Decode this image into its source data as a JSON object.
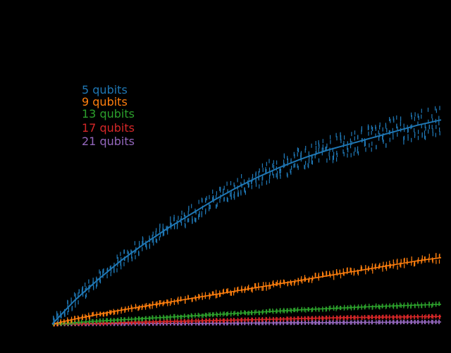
{
  "chart_data": {
    "type": "scatter",
    "title": "",
    "xlabel": "",
    "ylabel": "",
    "grid": false,
    "background": "#000000",
    "legend": {
      "placement": "upper-left",
      "entries": [
        "5 qubits",
        "9 qubits",
        "13 qubits",
        "17 qubits",
        "21 qubits"
      ]
    },
    "xlim": [
      0,
      1
    ],
    "ylim": [
      0,
      1
    ],
    "series": [
      {
        "name": "5 qubits",
        "color": "#1f77b4",
        "trend": [
          0,
          0.095,
          0.175,
          0.25,
          0.315,
          0.375,
          0.43,
          0.485,
          0.535,
          0.58,
          0.62,
          0.655,
          0.685,
          0.71,
          0.735,
          0.76,
          0.785,
          0.805
        ],
        "spread": 0.06
      },
      {
        "name": "9 qubits",
        "color": "#ff7f0e",
        "trend": [
          0,
          0.02,
          0.038,
          0.055,
          0.07,
          0.085,
          0.1,
          0.115,
          0.13,
          0.145,
          0.16,
          0.175,
          0.19,
          0.205,
          0.22,
          0.235,
          0.25,
          0.262
        ],
        "spread": 0.015
      },
      {
        "name": "13 qubits",
        "color": "#2ca02c",
        "trend": [
          0,
          0.006,
          0.012,
          0.017,
          0.022,
          0.027,
          0.032,
          0.037,
          0.042,
          0.047,
          0.052,
          0.057,
          0.061,
          0.065,
          0.069,
          0.072,
          0.075,
          0.078
        ],
        "spread": 0.005
      },
      {
        "name": "17 qubits",
        "color": "#d62728",
        "trend": [
          0,
          0.002,
          0.004,
          0.006,
          0.008,
          0.01,
          0.012,
          0.014,
          0.016,
          0.018,
          0.02,
          0.022,
          0.024,
          0.026,
          0.027,
          0.028,
          0.029,
          0.03
        ],
        "spread": 0.002
      },
      {
        "name": "21 qubits",
        "color": "#9467bd",
        "trend": [
          0,
          0.0005,
          0.001,
          0.0015,
          0.002,
          0.0025,
          0.003,
          0.0035,
          0.004,
          0.0045,
          0.005,
          0.0055,
          0.006,
          0.0065,
          0.007,
          0.0075,
          0.008,
          0.0085
        ],
        "spread": 0.001
      }
    ]
  }
}
